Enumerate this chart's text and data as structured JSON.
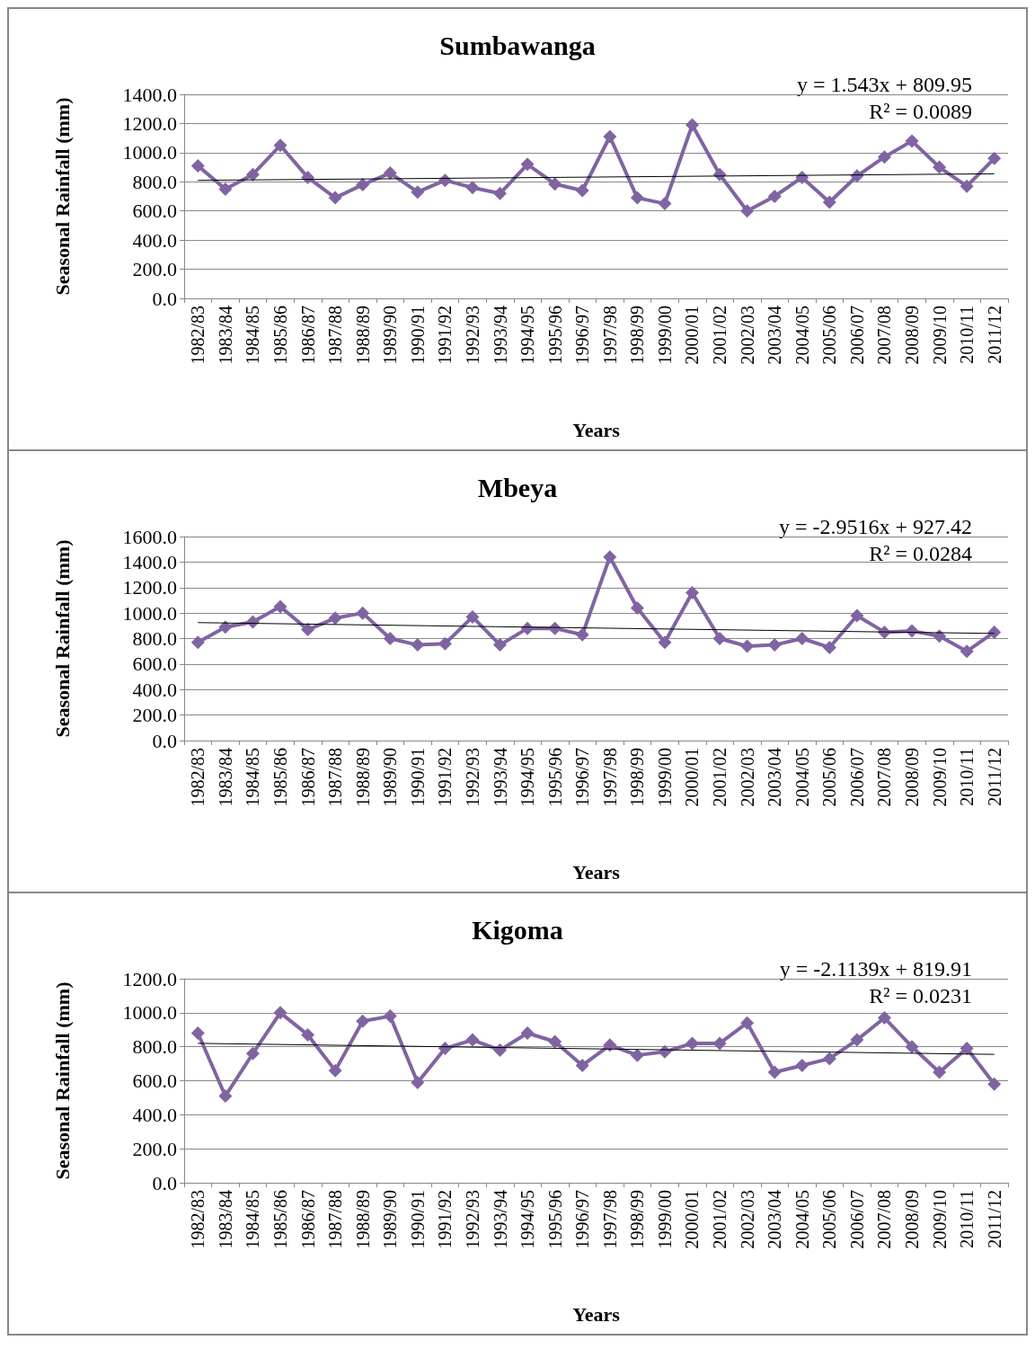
{
  "chart_data": [
    {
      "type": "line",
      "title": "Sumbawanga",
      "xlabel": "Years",
      "ylabel": "Seasonal Rainfall (mm)",
      "categories": [
        "1982/83",
        "1983/84",
        "1984/85",
        "1985/86",
        "1986/87",
        "1987/88",
        "1988/89",
        "1989/90",
        "1990/91",
        "1991/92",
        "1992/93",
        "1993/94",
        "1994/95",
        "1995/96",
        "1996/97",
        "1997/98",
        "1998/99",
        "1999/00",
        "2000/01",
        "2001/02",
        "2002/03",
        "2003/04",
        "2004/05",
        "2005/06",
        "2006/07",
        "2007/08",
        "2008/09",
        "2009/10",
        "2010/11",
        "2011/12"
      ],
      "series": [
        {
          "color": "#8064a2",
          "marker": "diamond",
          "values": [
            910,
            750,
            850,
            1050,
            830,
            690,
            780,
            860,
            730,
            810,
            760,
            720,
            920,
            785,
            740,
            1110,
            690,
            650,
            1190,
            850,
            600,
            700,
            830,
            660,
            840,
            970,
            1080,
            900,
            770,
            960
          ]
        },
        {
          "type": "line",
          "color": "#000000",
          "marker": "none",
          "x": [
            "1982/83",
            "2011/12"
          ],
          "values": [
            810,
            855
          ]
        }
      ],
      "ylim": [
        0,
        1400
      ],
      "yticks": [
        {
          "value": 0,
          "label": "0.0"
        },
        {
          "value": 200,
          "label": "200.0"
        },
        {
          "value": 400,
          "label": "400.0"
        },
        {
          "value": 600,
          "label": "600.0"
        },
        {
          "value": 800,
          "label": "800.0"
        },
        {
          "value": 1000,
          "label": "1000.0"
        },
        {
          "value": 1200,
          "label": "1200.0"
        },
        {
          "value": 1400,
          "label": "1400.0"
        }
      ],
      "grid": "y",
      "annotations": [
        "y = 1.543x + 809.95",
        "R² = 0.0089"
      ]
    },
    {
      "type": "line",
      "title": "Mbeya",
      "xlabel": "Years",
      "ylabel": "Seasonal Rainfall (mm)",
      "categories": [
        "1982/83",
        "1983/84",
        "1984/85",
        "1985/86",
        "1986/87",
        "1987/88",
        "1988/89",
        "1989/90",
        "1990/91",
        "1991/92",
        "1992/93",
        "1993/94",
        "1994/95",
        "1995/96",
        "1996/97",
        "1997/98",
        "1998/99",
        "1999/00",
        "2000/01",
        "2001/02",
        "2002/03",
        "2003/04",
        "2004/05",
        "2005/06",
        "2006/07",
        "2007/08",
        "2008/09",
        "2009/10",
        "2010/11",
        "2011/12"
      ],
      "series": [
        {
          "color": "#8064a2",
          "marker": "diamond",
          "values": [
            770,
            890,
            930,
            1050,
            870,
            960,
            1000,
            800,
            750,
            760,
            970,
            750,
            880,
            880,
            830,
            1440,
            1040,
            770,
            1160,
            800,
            740,
            750,
            800,
            730,
            980,
            850,
            860,
            820,
            700,
            850
          ]
        },
        {
          "type": "line",
          "color": "#000000",
          "marker": "none",
          "x": [
            "1982/83",
            "2011/12"
          ],
          "values": [
            925,
            840
          ]
        }
      ],
      "ylim": [
        0,
        1600
      ],
      "yticks": [
        {
          "value": 0,
          "label": "0.0"
        },
        {
          "value": 200,
          "label": "200.0"
        },
        {
          "value": 400,
          "label": "400.0"
        },
        {
          "value": 600,
          "label": "600.0"
        },
        {
          "value": 800,
          "label": "800.0"
        },
        {
          "value": 1000,
          "label": "1000.0"
        },
        {
          "value": 1200,
          "label": "1200.0"
        },
        {
          "value": 1400,
          "label": "1400.0"
        },
        {
          "value": 1600,
          "label": "1600.0"
        }
      ],
      "grid": "y",
      "annotations": [
        "y = -2.9516x + 927.42",
        "R² = 0.0284"
      ]
    },
    {
      "type": "line",
      "title": "Kigoma",
      "xlabel": "Years",
      "ylabel": "Seasonal Rainfall (mm)",
      "categories": [
        "1982/83",
        "1983/84",
        "1984/85",
        "1985/86",
        "1986/87",
        "1987/88",
        "1988/89",
        "1989/90",
        "1990/91",
        "1991/92",
        "1992/93",
        "1993/94",
        "1994/95",
        "1995/96",
        "1996/97",
        "1997/98",
        "1998/99",
        "1999/00",
        "2000/01",
        "2001/02",
        "2002/03",
        "2003/04",
        "2004/05",
        "2005/06",
        "2006/07",
        "2007/08",
        "2008/09",
        "2009/10",
        "2010/11",
        "2011/12"
      ],
      "series": [
        {
          "color": "#8064a2",
          "marker": "diamond",
          "values": [
            880,
            510,
            760,
            1000,
            870,
            660,
            950,
            980,
            590,
            790,
            840,
            780,
            880,
            830,
            690,
            810,
            750,
            770,
            820,
            820,
            940,
            650,
            690,
            730,
            840,
            970,
            800,
            650,
            790,
            580
          ]
        },
        {
          "type": "line",
          "color": "#000000",
          "marker": "none",
          "x": [
            "1982/83",
            "2011/12"
          ],
          "values": [
            820,
            755
          ]
        }
      ],
      "ylim": [
        0,
        1200
      ],
      "yticks": [
        {
          "value": 0,
          "label": "0.0"
        },
        {
          "value": 200,
          "label": "200.0"
        },
        {
          "value": 400,
          "label": "400.0"
        },
        {
          "value": 600,
          "label": "600.0"
        },
        {
          "value": 800,
          "label": "800.0"
        },
        {
          "value": 1000,
          "label": "1000.0"
        },
        {
          "value": 1200,
          "label": "1200.0"
        }
      ],
      "grid": "y",
      "annotations": [
        "y = -2.1139x + 819.91",
        "R² = 0.0231"
      ]
    }
  ]
}
